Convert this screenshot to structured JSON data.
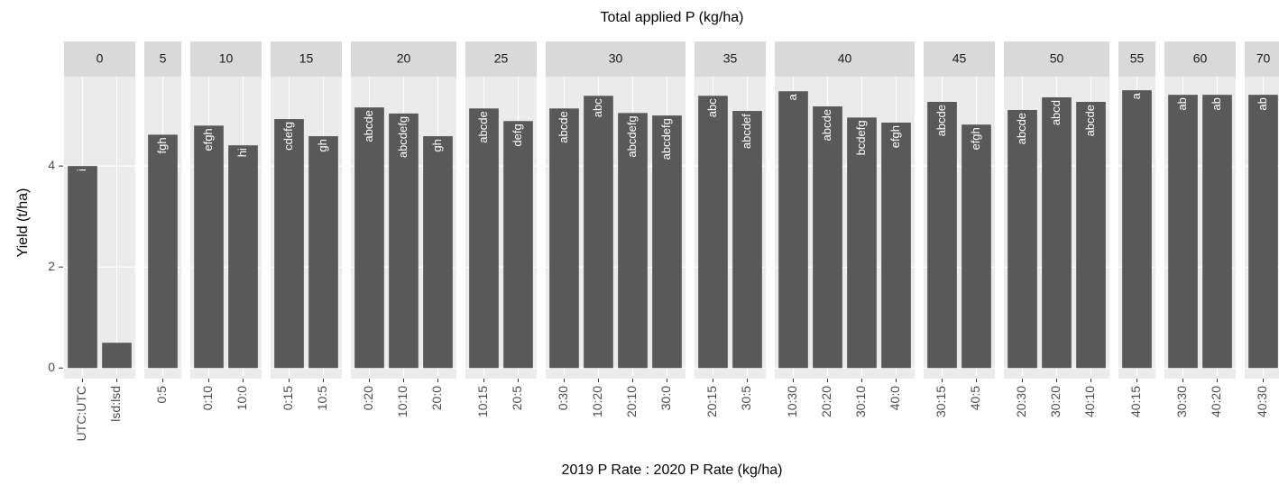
{
  "chart_data": {
    "type": "bar",
    "title": "Total applied P (kg/ha)",
    "x_label": "2019 P Rate : 2020 P Rate (kg/ha)",
    "y_label": "Yield (t/ha)",
    "ylim": [
      -0.21,
      5.77
    ],
    "yticks": [
      0,
      2,
      4
    ],
    "grid": true,
    "color": "#595959",
    "facets": [
      {
        "label": "0",
        "categories": [
          "UTC:UTC",
          "lsd:lsd"
        ],
        "values": [
          4.0,
          0.5
        ],
        "value_labels": [
          "i",
          null
        ]
      },
      {
        "label": "5",
        "categories": [
          "0:5"
        ],
        "values": [
          4.62
        ],
        "value_labels": [
          "fgh"
        ]
      },
      {
        "label": "10",
        "categories": [
          "0:10",
          "10:0"
        ],
        "values": [
          4.8,
          4.41
        ],
        "value_labels": [
          "efgh",
          "hi"
        ]
      },
      {
        "label": "15",
        "categories": [
          "0:15",
          "10:5"
        ],
        "values": [
          4.93,
          4.59
        ],
        "value_labels": [
          "cdefg",
          "gh"
        ]
      },
      {
        "label": "20",
        "categories": [
          "0:20",
          "10:10",
          "20:0"
        ],
        "values": [
          5.16,
          5.04,
          4.59
        ],
        "value_labels": [
          "abcde",
          "abcdefg",
          "gh"
        ]
      },
      {
        "label": "25",
        "categories": [
          "10:15",
          "20:5"
        ],
        "values": [
          5.14,
          4.89
        ],
        "value_labels": [
          "abcde",
          "defg"
        ]
      },
      {
        "label": "30",
        "categories": [
          "0:30",
          "10:20",
          "20:10",
          "30:0"
        ],
        "values": [
          5.14,
          5.39,
          5.05,
          5.0
        ],
        "value_labels": [
          "abcde",
          "abc",
          "abcdefg",
          "abcdefg"
        ]
      },
      {
        "label": "35",
        "categories": [
          "20:15",
          "30:5"
        ],
        "values": [
          5.39,
          5.09
        ],
        "value_labels": [
          "abc",
          "abcdef"
        ]
      },
      {
        "label": "40",
        "categories": [
          "10:30",
          "20:20",
          "30:10",
          "40:0"
        ],
        "values": [
          5.48,
          5.18,
          4.96,
          4.86
        ],
        "value_labels": [
          "a",
          "abcde",
          "bcdefg",
          "efgh"
        ]
      },
      {
        "label": "45",
        "categories": [
          "30:15",
          "40:5"
        ],
        "values": [
          5.27,
          4.82
        ],
        "value_labels": [
          "abcde",
          "efgh"
        ]
      },
      {
        "label": "50",
        "categories": [
          "20:30",
          "30:20",
          "40:10"
        ],
        "values": [
          5.11,
          5.36,
          5.27
        ],
        "value_labels": [
          "abcde",
          "abcd",
          "abcde"
        ]
      },
      {
        "label": "55",
        "categories": [
          "40:15"
        ],
        "values": [
          5.5
        ],
        "value_labels": [
          "a"
        ]
      },
      {
        "label": "60",
        "categories": [
          "30:30",
          "40:20"
        ],
        "values": [
          5.41,
          5.41
        ],
        "value_labels": [
          "ab",
          "ab"
        ]
      },
      {
        "label": "70",
        "categories": [
          "40:30"
        ],
        "values": [
          5.41
        ],
        "value_labels": [
          "ab"
        ]
      }
    ]
  }
}
